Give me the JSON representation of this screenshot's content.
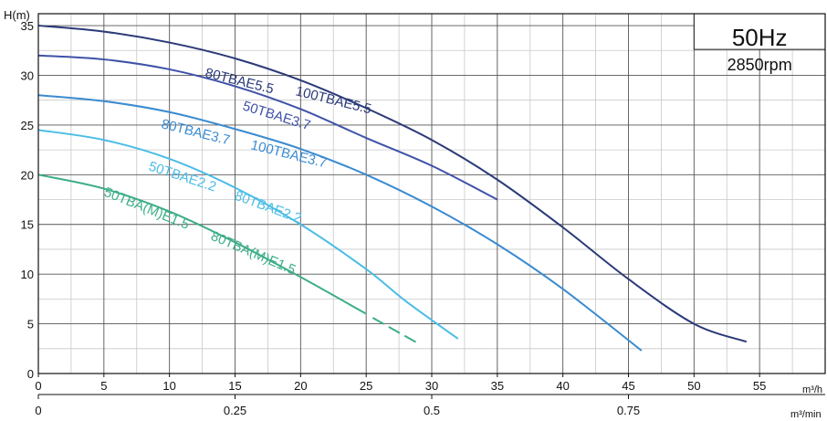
{
  "chart_data": {
    "type": "line",
    "title": "",
    "ylabel": "H(m)",
    "xlabel": "m³/h",
    "xlabel_secondary": "m³/min",
    "xlim": [
      0,
      60
    ],
    "ylim": [
      0,
      35
    ],
    "x_ticks": [
      0,
      5,
      10,
      15,
      20,
      25,
      30,
      35,
      40,
      45,
      50,
      55
    ],
    "y_ticks": [
      0,
      5,
      10,
      15,
      20,
      25,
      30,
      35
    ],
    "x2_ticks": [
      {
        "value": 0,
        "label": "0"
      },
      {
        "value": 0.25,
        "label": "0.25"
      },
      {
        "value": 0.5,
        "label": "0.5"
      },
      {
        "value": 0.75,
        "label": "0.75"
      }
    ],
    "grid": true,
    "frequency": "50Hz",
    "speed": "2850rpm",
    "series": [
      {
        "labels": [
          "80TBAE5.5",
          "100TBAE5.5"
        ],
        "color": "#2b3a78",
        "x": [
          0,
          5,
          10,
          15,
          20,
          25,
          30,
          35,
          40,
          45,
          50,
          54
        ],
        "y": [
          35,
          34.4,
          33.3,
          31.7,
          29.5,
          26.7,
          23.5,
          19.5,
          14.7,
          9.5,
          5.0,
          3.2
        ]
      },
      {
        "labels": [
          "50TBAE3.7"
        ],
        "color": "#3f52a8",
        "x": [
          0,
          5,
          10,
          15,
          20,
          25,
          30,
          35
        ],
        "y": [
          32,
          31.6,
          30.6,
          28.9,
          26.6,
          23.7,
          20.9,
          17.5
        ]
      },
      {
        "labels": [
          "80TBAE3.7",
          "100TBAE3.7"
        ],
        "color": "#3a8bd0",
        "x": [
          0,
          5,
          10,
          15,
          20,
          25,
          30,
          35,
          40,
          46
        ],
        "y": [
          28,
          27.4,
          26.3,
          24.6,
          22.6,
          20.0,
          16.8,
          13.0,
          8.5,
          2.3
        ]
      },
      {
        "labels": [
          "50TBAE2.2",
          "80TBAE2.2"
        ],
        "color": "#4bbde6",
        "x": [
          0,
          5,
          10,
          15,
          20,
          25,
          28,
          32
        ],
        "y": [
          24.5,
          23.5,
          21.6,
          18.7,
          15.0,
          10.5,
          7.3,
          3.5
        ]
      },
      {
        "labels": [
          "50TBA(M)E1.5",
          "80TBA(M)E1.5"
        ],
        "color": "#3dae86",
        "x": [
          0,
          5,
          10,
          15,
          20,
          25
        ],
        "y": [
          20,
          18.6,
          16.3,
          13.2,
          9.7,
          6.0
        ],
        "dashed_x": [
          25.5,
          29
        ],
        "dashed_y": [
          5.6,
          3.0
        ]
      }
    ]
  }
}
